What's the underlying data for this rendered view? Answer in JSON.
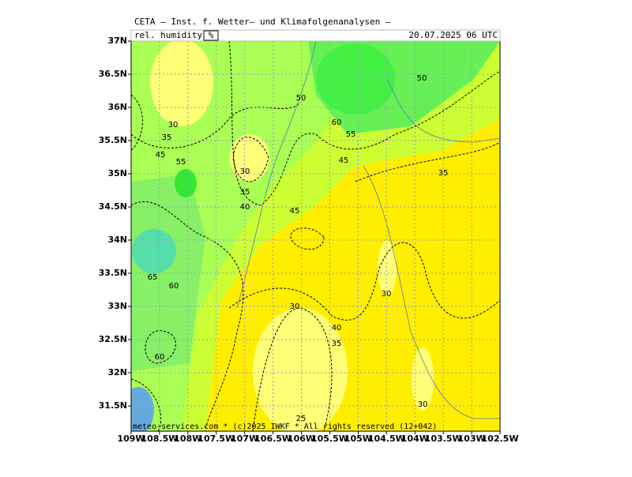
{
  "header": {
    "title": "CETA — Inst. f. Wetter— und Klimafolgenanalysen —",
    "parameter": "rel. humidity",
    "unit": "%",
    "valid": "20.07.2025 06 UTC"
  },
  "axes": {
    "lat": [
      "37N",
      "36.5N",
      "36N",
      "35.5N",
      "35N",
      "34.5N",
      "34N",
      "33.5N",
      "33N",
      "32.5N",
      "32N",
      "31.5N"
    ],
    "lon": [
      "109W",
      "108.5W",
      "108W",
      "107.5W",
      "107W",
      "106.5W",
      "106W",
      "105.5W",
      "105W",
      "104.5W",
      "104W",
      "103.5W",
      "103W",
      "102.5W"
    ]
  },
  "contour_labels": [
    50,
    50,
    60,
    55,
    45,
    35,
    30,
    35,
    45,
    55,
    30,
    35,
    40,
    45,
    65,
    60,
    30,
    30,
    40,
    35,
    60,
    30,
    25
  ],
  "footer": "meteo-services.com * (c)2025 IWKF * All rights reserved (12+042)"
}
